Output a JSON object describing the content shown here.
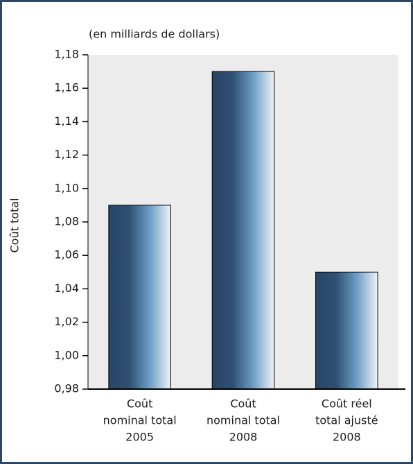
{
  "chart_data": {
    "type": "bar",
    "subtitle": "(en milliards de dollars)",
    "y_label": "Coût total",
    "categories": [
      [
        "Coût",
        "nominal total",
        "2005"
      ],
      [
        "Coût",
        "nominal total",
        "2008"
      ],
      [
        "Coût réel",
        "total ajusté",
        "2008"
      ]
    ],
    "values": [
      1.09,
      1.17,
      1.05
    ],
    "gradient": [
      "#2a4464",
      "#2f5074",
      "#6f9ec6",
      "#eef3f8"
    ],
    "ylim": [
      0.98,
      1.18
    ],
    "yticks": [
      {
        "value": 0.98,
        "label": "0,98"
      },
      {
        "value": 1.0,
        "label": "1,00"
      },
      {
        "value": 1.02,
        "label": "1,02"
      },
      {
        "value": 1.04,
        "label": "1,04"
      },
      {
        "value": 1.06,
        "label": "1,06"
      },
      {
        "value": 1.08,
        "label": "1,08"
      },
      {
        "value": 1.1,
        "label": "1,10"
      },
      {
        "value": 1.12,
        "label": "1,12"
      },
      {
        "value": 1.14,
        "label": "1,14"
      },
      {
        "value": 1.16,
        "label": "1,16"
      },
      {
        "value": 1.18,
        "label": "1,18"
      }
    ]
  }
}
